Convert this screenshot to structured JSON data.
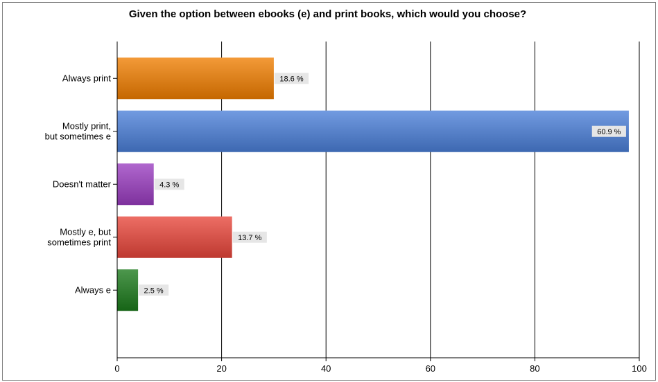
{
  "chart_data": {
    "type": "bar",
    "orientation": "horizontal",
    "title": "Given the option between ebooks (e) and print books, which would you choose?",
    "categories": [
      [
        "Always print"
      ],
      [
        "Mostly print,",
        "but sometimes e"
      ],
      [
        "Doesn't matter"
      ],
      [
        "Mostly e, but",
        "sometimes print"
      ],
      [
        "Always e"
      ]
    ],
    "values": [
      30,
      98,
      7,
      22,
      4
    ],
    "data_labels": [
      "18.6 %",
      "60.9 %",
      "4.3 %",
      "13.7 %",
      "2.5 %"
    ],
    "colors": [
      "#f07d00",
      "#4a7fd8",
      "#9a3cc0",
      "#e8453a",
      "#1b7a1b"
    ],
    "xlim": [
      0,
      100
    ],
    "xticks": [
      0,
      20,
      40,
      60,
      80,
      100
    ],
    "grid": true,
    "legend": "none"
  }
}
